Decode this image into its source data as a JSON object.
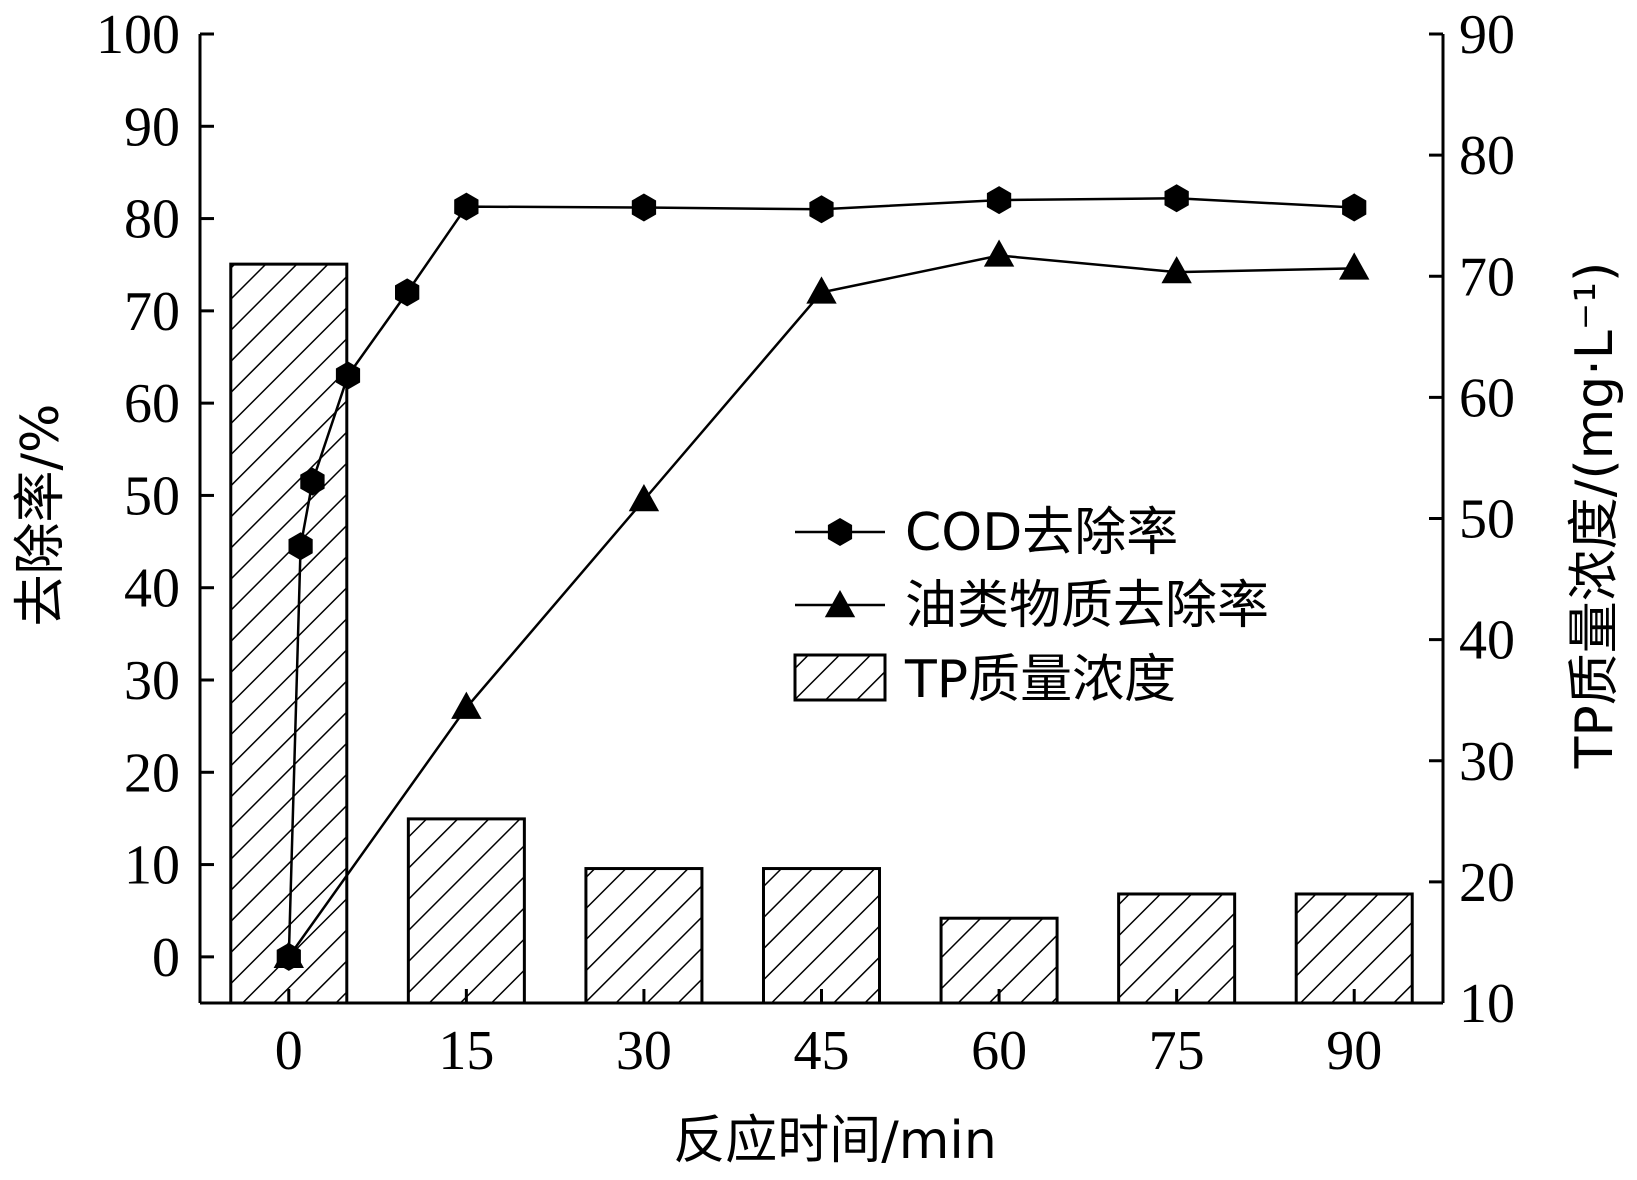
{
  "chart_data": {
    "type": "bar",
    "x_axis": {
      "label": "反应时间/min",
      "ticks": [
        0,
        15,
        30,
        45,
        60,
        75,
        90
      ],
      "range": [
        -7.5,
        97.5
      ]
    },
    "y_left": {
      "label": "去除率/%",
      "range": [
        -5,
        100
      ],
      "ticks": [
        0,
        10,
        20,
        30,
        40,
        50,
        60,
        70,
        80,
        90,
        100
      ]
    },
    "y_right": {
      "label": "TP质量浓度/(mg·L⁻¹)",
      "range": [
        10,
        90
      ],
      "ticks": [
        10,
        20,
        30,
        40,
        50,
        60,
        70,
        80,
        90
      ]
    },
    "grid": false,
    "legend_position": "center-right",
    "series": [
      {
        "name": "COD去除率",
        "type": "line",
        "marker": "hexagon",
        "axis": "left",
        "x": [
          0,
          1,
          2,
          5,
          10,
          15,
          30,
          45,
          60,
          75,
          90
        ],
        "y": [
          0,
          44.5,
          51.5,
          63,
          72,
          81.3,
          81.2,
          81,
          82,
          82.2,
          81.2
        ]
      },
      {
        "name": "油类物质去除率",
        "type": "line",
        "marker": "triangle",
        "axis": "left",
        "x": [
          0,
          15,
          30,
          45,
          60,
          75,
          90
        ],
        "y": [
          0,
          27,
          49.5,
          72,
          76,
          74.2,
          74.6
        ]
      },
      {
        "name": "TP质量浓度",
        "type": "bar",
        "pattern": "hatch",
        "axis": "right",
        "x": [
          0,
          15,
          30,
          45,
          60,
          75,
          90
        ],
        "y": [
          71,
          25.2,
          21.1,
          21.1,
          17,
          19,
          19
        ]
      }
    ]
  },
  "colors": {
    "ink": "#000000",
    "background": "#ffffff"
  }
}
